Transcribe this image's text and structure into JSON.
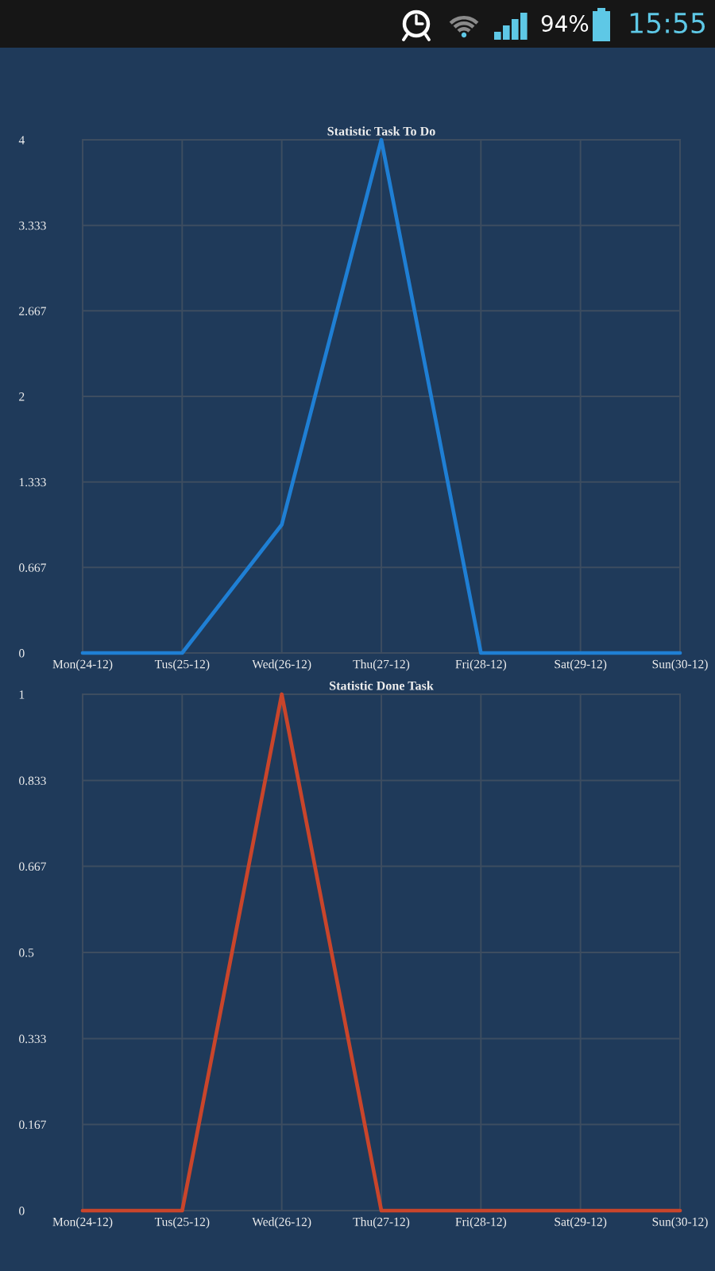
{
  "chart_data": [
    {
      "type": "other",
      "annotations": [
        "94%",
        "15:55"
      ]
    },
    {
      "type": "line",
      "title": "Statistic Task To Do",
      "categories": [
        "Mon(24-12)",
        "Tus(25-12)",
        "Wed(26-12)",
        "Thu(27-12)",
        "Fri(28-12)",
        "Sat(29-12)",
        "Sun(30-12)"
      ],
      "series": [
        {
          "color": "#1f7fd4",
          "values": [
            0,
            0,
            1,
            4,
            0,
            0,
            0
          ]
        }
      ],
      "ylim": [
        0,
        4
      ],
      "yticks": [
        0,
        0.667,
        1.333,
        2,
        2.667,
        3.333,
        4
      ],
      "grid": true
    },
    {
      "type": "line",
      "title": "Statistic Done Task",
      "categories": [
        "Mon(24-12)",
        "Tus(25-12)",
        "Wed(26-12)",
        "Thu(27-12)",
        "Fri(28-12)",
        "Sat(29-12)",
        "Sun(30-12)"
      ],
      "series": [
        {
          "color": "#c9452b",
          "values": [
            0,
            0,
            1,
            0,
            0,
            0,
            0
          ]
        }
      ],
      "ylim": [
        0,
        1
      ],
      "yticks": [
        0,
        0.167,
        0.333,
        0.5,
        0.667,
        0.833,
        1
      ],
      "grid": true
    }
  ]
}
